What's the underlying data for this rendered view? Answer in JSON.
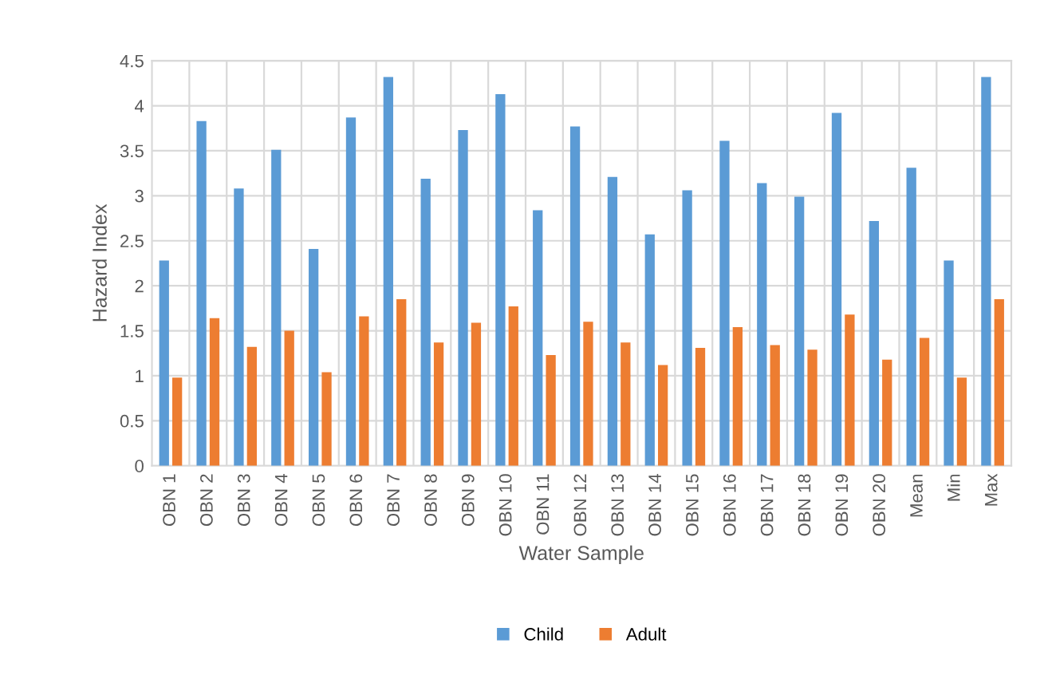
{
  "chart_data": {
    "type": "bar",
    "xlabel": "Water Sample",
    "ylabel": "Hazard Index",
    "categories": [
      "OBN 1",
      "OBN 2",
      "OBN 3",
      "OBN 4",
      "OBN 5",
      "OBN 6",
      "OBN 7",
      "OBN 8",
      "OBN 9",
      "OBN 10",
      "OBN 11",
      "OBN 12",
      "OBN 13",
      "OBN 14",
      "OBN 15",
      "OBN 16",
      "OBN 17",
      "OBN 18",
      "OBN 19",
      "OBN 20",
      "Mean",
      "Min",
      "Max"
    ],
    "series": [
      {
        "name": "Child",
        "color": "#5b9bd5",
        "values": [
          2.28,
          3.83,
          3.08,
          3.51,
          2.41,
          3.87,
          4.32,
          3.19,
          3.73,
          4.13,
          2.84,
          3.77,
          3.21,
          2.57,
          3.06,
          3.61,
          3.14,
          2.99,
          3.92,
          2.72,
          3.31,
          2.28,
          4.32
        ]
      },
      {
        "name": "Adult",
        "color": "#ed7d31",
        "values": [
          0.98,
          1.64,
          1.32,
          1.5,
          1.04,
          1.66,
          1.85,
          1.37,
          1.59,
          1.77,
          1.23,
          1.6,
          1.37,
          1.12,
          1.31,
          1.54,
          1.34,
          1.29,
          1.68,
          1.18,
          1.42,
          0.98,
          1.85
        ]
      }
    ],
    "ylim": [
      0,
      4.5
    ],
    "yticks": [
      0,
      0.5,
      1,
      1.5,
      2,
      2.5,
      3,
      3.5,
      4,
      4.5
    ],
    "grid": true,
    "legend": "bottom"
  }
}
